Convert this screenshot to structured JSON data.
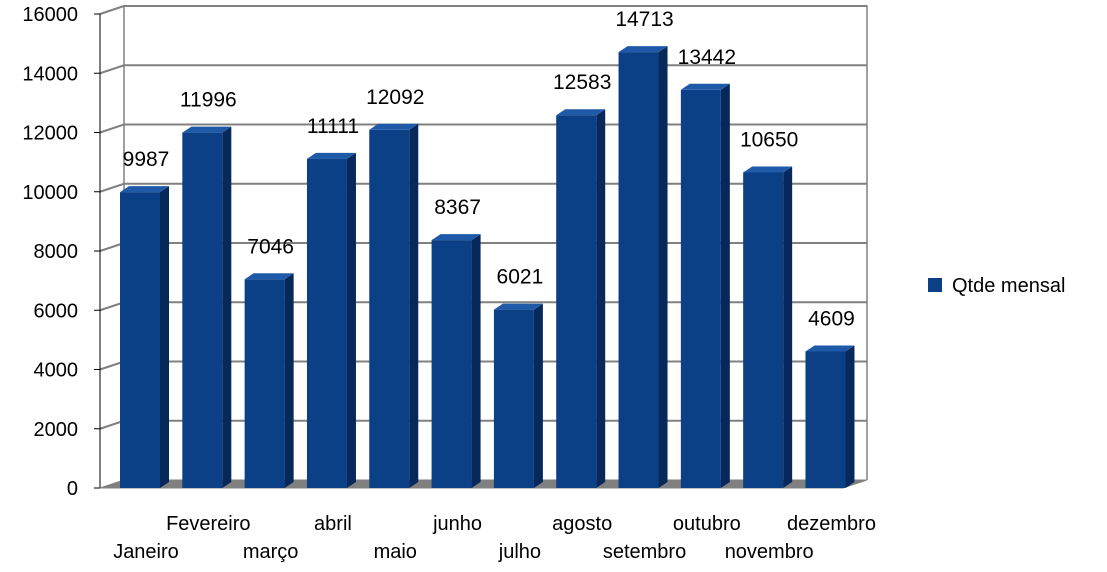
{
  "chart_data": {
    "type": "bar",
    "categories": [
      "Janeiro",
      "Fevereiro",
      "março",
      "abril",
      "maio",
      "junho",
      "julho",
      "agosto",
      "setembro",
      "outubro",
      "novembro",
      "dezembro"
    ],
    "series": [
      {
        "name": "Qtde mensal",
        "values": [
          9987,
          11996,
          7046,
          11111,
          12092,
          8367,
          6021,
          12583,
          14713,
          13442,
          10650,
          4609
        ]
      }
    ],
    "ylim": [
      0,
      16000
    ],
    "yticks": [
      0,
      2000,
      4000,
      6000,
      8000,
      10000,
      12000,
      14000,
      16000
    ],
    "data_labels": [
      "9987",
      "11996",
      "7046",
      "11111",
      "12092",
      "8367",
      "6021",
      "12583",
      "14713",
      "13442",
      "10650",
      "4609"
    ],
    "grid": true,
    "three_d": true,
    "legend": {
      "position": "right",
      "label": "Qtde mensal"
    },
    "colors": {
      "bar_front": "#0b3f86",
      "bar_side": "#06285a",
      "bar_top": "#1f5aa8",
      "grid": "#808080",
      "floor": "#808080",
      "legend_swatch": "#0b3f86"
    }
  }
}
